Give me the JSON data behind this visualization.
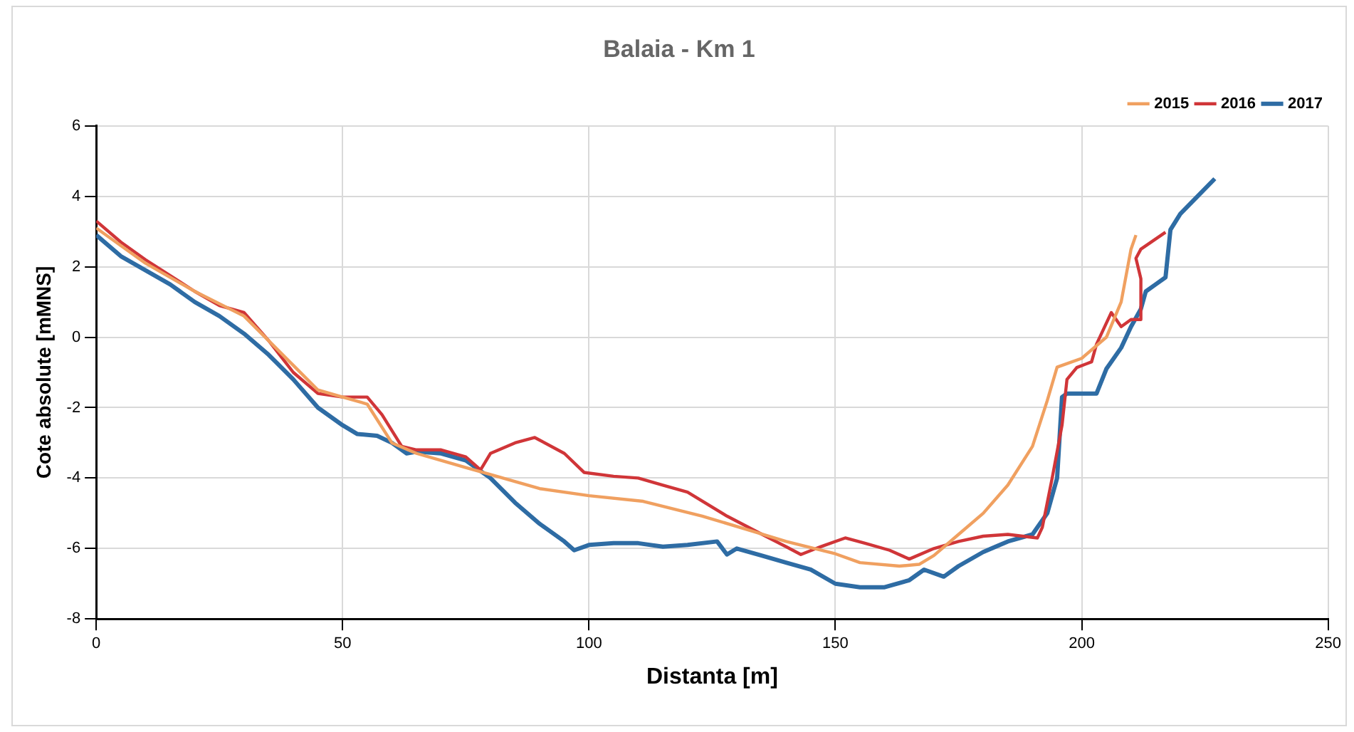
{
  "chart_data": {
    "type": "line",
    "title": "Balaia - Km 1",
    "xlabel": "Distanta [m]",
    "ylabel": "Cote absolute [mMNS]",
    "xlim": [
      0,
      250
    ],
    "xticks": [
      0,
      50,
      100,
      150,
      200,
      250
    ],
    "ylim": [
      -8,
      6
    ],
    "yticks": [
      -8,
      -6,
      -4,
      -2,
      0,
      2,
      4,
      6
    ],
    "grid": true,
    "legend": "top right",
    "marker": "none",
    "line_style": "solid",
    "series": [
      {
        "name": "2015",
        "color": "#f0a060",
        "x": [
          0,
          10,
          20,
          30,
          40,
          45,
          50,
          55,
          60,
          65,
          70,
          75,
          80,
          90,
          100,
          111,
          123,
          133,
          140,
          150,
          155,
          163,
          167,
          170,
          175,
          180,
          185,
          190,
          193,
          195,
          200,
          205,
          208,
          210,
          211
        ],
        "values": [
          3.1,
          2.1,
          1.3,
          0.6,
          -0.8,
          -1.5,
          -1.7,
          -1.9,
          -3.0,
          -3.3,
          -3.5,
          -3.7,
          -3.9,
          -4.3,
          -4.5,
          -4.66,
          -5.08,
          -5.5,
          -5.8,
          -6.15,
          -6.4,
          -6.5,
          -6.45,
          -6.2,
          -5.6,
          -5.0,
          -4.2,
          -3.1,
          -1.8,
          -0.85,
          -0.6,
          0,
          1,
          2.5,
          2.9
        ]
      },
      {
        "name": "2016",
        "color": "#d03538",
        "x": [
          0,
          5,
          10,
          20,
          25,
          30,
          35,
          40,
          45,
          50,
          55,
          58,
          62,
          65,
          70,
          75,
          78,
          80,
          85,
          89,
          95,
          99,
          105,
          110,
          115,
          120,
          128,
          135,
          140,
          143,
          147,
          152,
          156,
          161,
          165,
          170,
          175,
          180,
          185,
          191,
          192,
          194,
          196,
          197,
          199,
          202,
          203,
          206,
          208,
          210,
          212,
          212,
          211,
          212,
          217
        ],
        "values": [
          3.3,
          2.7,
          2.2,
          1.3,
          0.9,
          0.7,
          -0.1,
          -1.0,
          -1.6,
          -1.7,
          -1.7,
          -2.2,
          -3.1,
          -3.2,
          -3.2,
          -3.4,
          -3.77,
          -3.3,
          -3.0,
          -2.85,
          -3.3,
          -3.84,
          -3.95,
          -4.0,
          -4.2,
          -4.4,
          -5.08,
          -5.59,
          -5.95,
          -6.17,
          -5.95,
          -5.7,
          -5.85,
          -6.05,
          -6.3,
          -6.0,
          -5.8,
          -5.65,
          -5.6,
          -5.7,
          -5.4,
          -4.0,
          -2.5,
          -1.2,
          -0.86,
          -0.7,
          -0.2,
          0.7,
          0.3,
          0.5,
          0.5,
          1.66,
          2.24,
          2.5,
          2.98
        ]
      },
      {
        "name": "2017",
        "color": "#2e6ca4",
        "x": [
          0,
          5,
          10,
          15,
          20,
          25,
          30,
          35,
          40,
          45,
          50,
          53,
          57,
          60,
          63,
          65,
          70,
          75,
          80,
          85,
          90,
          95,
          97,
          100,
          105,
          110,
          115,
          120,
          126,
          128,
          130,
          135,
          140,
          145,
          150,
          155,
          160,
          165,
          168,
          172,
          175,
          180,
          185,
          190,
          193,
          195,
          196,
          197,
          203,
          205,
          208,
          210,
          212,
          213,
          215,
          217,
          218,
          220,
          227
        ],
        "values": [
          2.9,
          2.3,
          1.9,
          1.5,
          1.0,
          0.6,
          0.1,
          -0.5,
          -1.2,
          -2.0,
          -2.5,
          -2.75,
          -2.8,
          -3.0,
          -3.3,
          -3.25,
          -3.3,
          -3.5,
          -4.0,
          -4.7,
          -5.3,
          -5.8,
          -6.05,
          -5.9,
          -5.85,
          -5.85,
          -5.95,
          -5.9,
          -5.8,
          -6.17,
          -6.0,
          -6.2,
          -6.4,
          -6.6,
          -7.0,
          -7.1,
          -7.1,
          -6.9,
          -6.6,
          -6.8,
          -6.5,
          -6.1,
          -5.8,
          -5.6,
          -5.0,
          -4.0,
          -1.7,
          -1.6,
          -1.6,
          -0.9,
          -0.3,
          0.3,
          0.8,
          1.3,
          1.5,
          1.7,
          3.05,
          3.5,
          4.5
        ]
      }
    ]
  }
}
